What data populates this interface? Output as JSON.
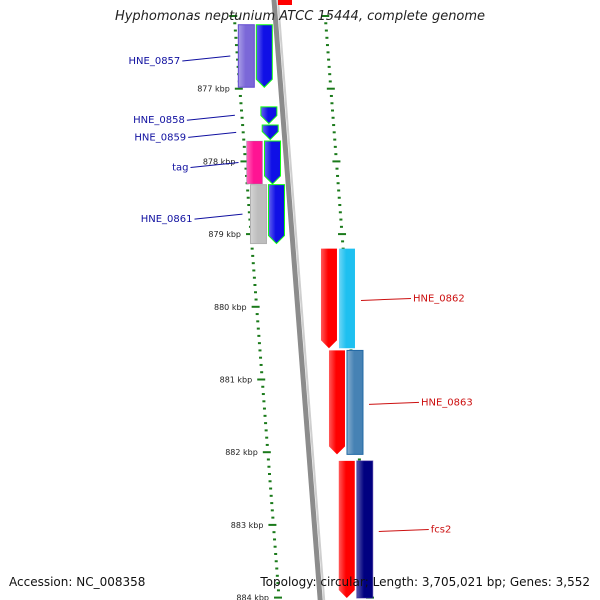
{
  "title": "Hyphomonas neptunium ATCC 15444, complete genome",
  "accession": "Accession: NC_008358",
  "topology": "Topology: circular; Length: 3,705,021 bp; Genes: 3,552",
  "scale": {
    "start_kbp": 876,
    "end_kbp": 884,
    "tick_labels": [
      "877 kbp",
      "878 kbp",
      "879 kbp",
      "880 kbp",
      "881 kbp",
      "882 kbp",
      "883 kbp",
      "884 kbp"
    ]
  },
  "colors": {
    "backbone": "#8c8c8c",
    "tick": "#1a7a1a",
    "forward_label": "#1010a0",
    "reverse_label": "#cc1010"
  },
  "forward_genes": [
    {
      "label": "HNE_0857",
      "start_kbp": 876.12,
      "end_kbp": 876.98,
      "lane1_color": "#7b68d8",
      "lane2_color": "#1010e6"
    },
    {
      "label": "HNE_0858",
      "start_kbp": 877.25,
      "end_kbp": 877.48,
      "lane1_color": "",
      "lane2_color": "#1010e6"
    },
    {
      "label": "HNE_0859",
      "start_kbp": 877.5,
      "end_kbp": 877.7,
      "lane1_color": "",
      "lane2_color": "#1010e6"
    },
    {
      "label": "tag",
      "start_kbp": 877.72,
      "end_kbp": 878.31,
      "lane1_color": "#ff1493",
      "lane2_color": "#1010e6"
    },
    {
      "label": "HNE_0861",
      "start_kbp": 878.32,
      "end_kbp": 879.13,
      "lane1_color": "#bdbdbd",
      "lane2_color": "#1010e6"
    }
  ],
  "reverse_genes": [
    {
      "label": "HNE_0862",
      "start_kbp": 879.2,
      "end_kbp": 880.57,
      "lane1_color": "#ff0000",
      "lane2_color": "#1ec0f0"
    },
    {
      "label": "HNE_0863",
      "start_kbp": 880.6,
      "end_kbp": 882.03,
      "lane1_color": "#ff0000",
      "lane2_color": "#4682b4"
    },
    {
      "label": "fcs2",
      "start_kbp": 882.12,
      "end_kbp": 884.1,
      "lane1_color": "#ff0000",
      "lane2_color": "#000080"
    }
  ]
}
